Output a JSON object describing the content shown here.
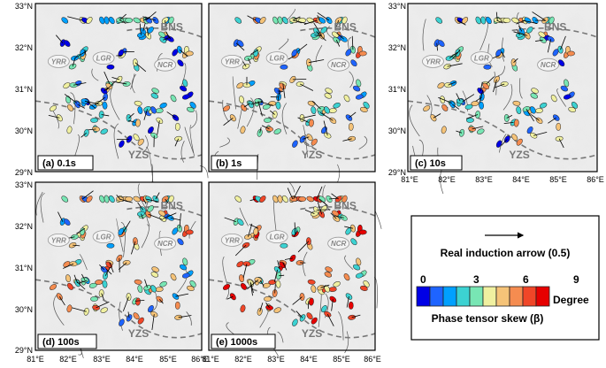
{
  "axes": {
    "lat_ticks": [
      "29°N",
      "30°N",
      "31°N",
      "32°N",
      "33°N"
    ],
    "lon_ticks": [
      "81°E",
      "82°E",
      "83°E",
      "84°E",
      "85°E",
      "86°E"
    ]
  },
  "geo_labels": {
    "bns": "BNS",
    "yzs": "YZS",
    "yrr": "YRR",
    "lgr": "LGR",
    "ncr": "NCR"
  },
  "panels": [
    {
      "label": "(a) 0.1s",
      "skew_bias": 0.15
    },
    {
      "label": "(b) 1s",
      "skew_bias": 0.35
    },
    {
      "label": "(c) 10s",
      "skew_bias": 0.3
    },
    {
      "label": "(d) 100s",
      "skew_bias": 0.45
    },
    {
      "label": "(e) 1000s",
      "skew_bias": 0.7
    }
  ],
  "legend": {
    "arrow_label": "Real induction arrow (0.5)",
    "scale_title": "Phase tensor skew (β)",
    "unit": "Degree",
    "ticks": [
      "0",
      "3",
      "6",
      "9"
    ],
    "scale_range": [
      0,
      9
    ],
    "colors": [
      "#0000e6",
      "#1e64ff",
      "#00a0ff",
      "#3cd2d2",
      "#78e6b4",
      "#f0f0a0",
      "#f5c378",
      "#f58c50",
      "#f04628",
      "#e60000"
    ]
  },
  "colors": {
    "frame": "#000000",
    "station_outline": "#222222",
    "fault": "#555555",
    "suture": "#777777"
  }
}
